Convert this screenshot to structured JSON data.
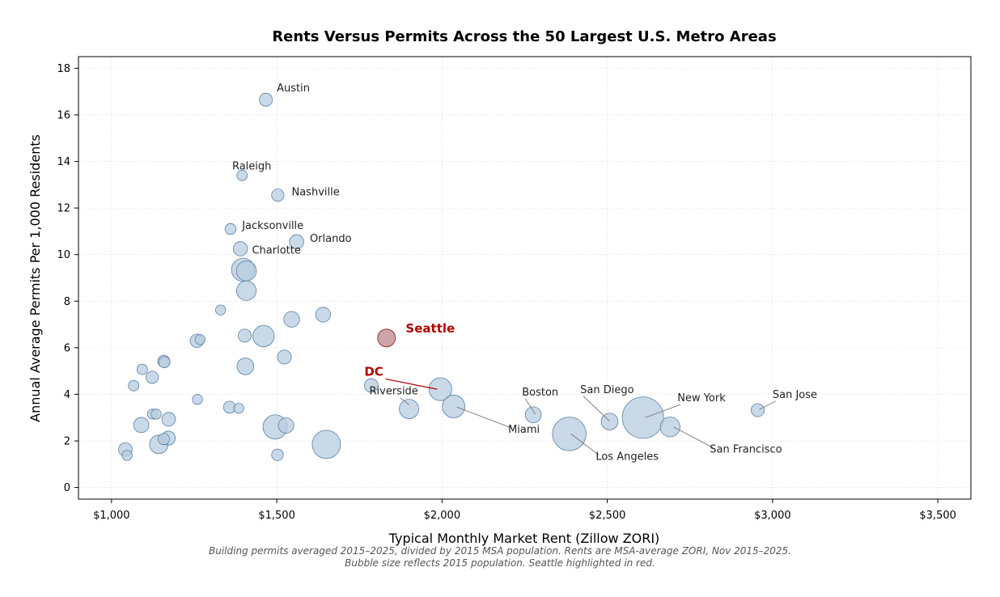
{
  "chart_data": {
    "type": "scatter",
    "title": "Rents Versus Permits Across the 50 Largest U.S. Metro Areas",
    "xlabel": "Typical Monthly Market Rent (Zillow ZORI)",
    "ylabel": "Annual Average Permits Per 1,000 Residents",
    "xlim": [
      900,
      3600
    ],
    "ylim": [
      -0.5,
      18.5
    ],
    "x_ticks": [
      1000,
      1500,
      2000,
      2500,
      3000,
      3500
    ],
    "x_tick_labels": [
      "$1,000",
      "$1,500",
      "$2,000",
      "$2,500",
      "$3,000",
      "$3,500"
    ],
    "y_ticks": [
      0,
      2,
      4,
      6,
      8,
      10,
      12,
      14,
      16,
      18
    ],
    "y_tick_labels": [
      "0",
      "2",
      "4",
      "6",
      "8",
      "10",
      "12",
      "14",
      "16",
      "18"
    ],
    "grid": true,
    "caption_lines": [
      "Building permits averaged 2015–2025, divided by 2015 MSA population. Rents are MSA-average ZORI, Nov 2015–2025.",
      "Bubble size reflects 2015 population. Seattle highlighted in red."
    ],
    "highlight_color": "#b30000",
    "points": [
      {
        "name": "Austin",
        "x": 1467,
        "y": 16.65,
        "pop": 2.0
      },
      {
        "name": "Raleigh",
        "x": 1395,
        "y": 13.4,
        "pop": 1.3
      },
      {
        "name": "Nashville",
        "x": 1503,
        "y": 12.55,
        "pop": 1.8
      },
      {
        "name": "Jacksonville",
        "x": 1360,
        "y": 11.1,
        "pop": 1.4
      },
      {
        "name": "Orlando",
        "x": 1560,
        "y": 10.55,
        "pop": 2.4
      },
      {
        "name": "Charlotte",
        "x": 1390,
        "y": 10.25,
        "pop": 2.4
      },
      {
        "name": "",
        "x": 1398,
        "y": 9.35,
        "pop": 6.3
      },
      {
        "name": "",
        "x": 1408,
        "y": 9.3,
        "pop": 4.7
      },
      {
        "name": "",
        "x": 1408,
        "y": 8.45,
        "pop": 4.5
      },
      {
        "name": "",
        "x": 1330,
        "y": 7.62,
        "pop": 1.2
      },
      {
        "name": "",
        "x": 1545,
        "y": 7.22,
        "pop": 2.9
      },
      {
        "name": "",
        "x": 1640,
        "y": 7.42,
        "pop": 2.6
      },
      {
        "name": "",
        "x": 1460,
        "y": 6.5,
        "pop": 5.4
      },
      {
        "name": "",
        "x": 1403,
        "y": 6.52,
        "pop": 2.0
      },
      {
        "name": "",
        "x": 1258,
        "y": 6.3,
        "pop": 2.1
      },
      {
        "name": "",
        "x": 1268,
        "y": 6.35,
        "pop": 1.2
      },
      {
        "name": "",
        "x": 1158,
        "y": 5.42,
        "pop": 1.7
      },
      {
        "name": "",
        "x": 1160,
        "y": 5.38,
        "pop": 1.5
      },
      {
        "name": "",
        "x": 1523,
        "y": 5.6,
        "pop": 2.3
      },
      {
        "name": "",
        "x": 1405,
        "y": 5.2,
        "pop": 3.3
      },
      {
        "name": "",
        "x": 1093,
        "y": 5.07,
        "pop": 1.3
      },
      {
        "name": "",
        "x": 1123,
        "y": 4.73,
        "pop": 1.8
      },
      {
        "name": "",
        "x": 1067,
        "y": 4.37,
        "pop": 1.3
      },
      {
        "name": "Seattle",
        "x": 1832,
        "y": 6.42,
        "pop": 3.7
      },
      {
        "name": "DC",
        "x": 1995,
        "y": 4.22,
        "pop": 6.1
      },
      {
        "name": "Riverside",
        "x": 1786,
        "y": 4.38,
        "pop": 2.2
      },
      {
        "name": "",
        "x": 1900,
        "y": 3.37,
        "pop": 4.4
      },
      {
        "name": "Miami",
        "x": 2035,
        "y": 3.48,
        "pop": 6.0
      },
      {
        "name": "Boston",
        "x": 2276,
        "y": 3.12,
        "pop": 3.0
      },
      {
        "name": "San Diego",
        "x": 2507,
        "y": 2.83,
        "pop": 3.3
      },
      {
        "name": "Los Angeles",
        "x": 2385,
        "y": 2.3,
        "pop": 13.3
      },
      {
        "name": "New York",
        "x": 2608,
        "y": 3.0,
        "pop": 20.2
      },
      {
        "name": "San Francisco",
        "x": 2690,
        "y": 2.6,
        "pop": 4.6
      },
      {
        "name": "San Jose",
        "x": 2955,
        "y": 3.32,
        "pop": 2.0
      },
      {
        "name": "",
        "x": 1260,
        "y": 3.78,
        "pop": 1.2
      },
      {
        "name": "",
        "x": 1357,
        "y": 3.45,
        "pop": 1.7
      },
      {
        "name": "",
        "x": 1385,
        "y": 3.4,
        "pop": 1.2
      },
      {
        "name": "",
        "x": 1124,
        "y": 3.15,
        "pop": 1.2
      },
      {
        "name": "",
        "x": 1135,
        "y": 3.15,
        "pop": 1.2
      },
      {
        "name": "",
        "x": 1173,
        "y": 2.93,
        "pop": 2.2
      },
      {
        "name": "",
        "x": 1090,
        "y": 2.68,
        "pop": 2.7
      },
      {
        "name": "",
        "x": 1172,
        "y": 2.12,
        "pop": 2.3
      },
      {
        "name": "",
        "x": 1158,
        "y": 2.08,
        "pop": 1.5
      },
      {
        "name": "",
        "x": 1143,
        "y": 1.85,
        "pop": 4.0
      },
      {
        "name": "",
        "x": 1042,
        "y": 1.63,
        "pop": 2.2
      },
      {
        "name": "",
        "x": 1047,
        "y": 1.38,
        "pop": 1.2
      },
      {
        "name": "",
        "x": 1495,
        "y": 2.6,
        "pop": 6.9
      },
      {
        "name": "",
        "x": 1528,
        "y": 2.66,
        "pop": 2.8
      },
      {
        "name": "",
        "x": 1502,
        "y": 1.4,
        "pop": 1.6
      },
      {
        "name": "",
        "x": 1650,
        "y": 1.85,
        "pop": 9.4
      }
    ],
    "annotations": [
      {
        "label": "Austin",
        "x": 1500,
        "y": 17.0,
        "highlight": false,
        "arrow": false
      },
      {
        "label": "Raleigh",
        "x": 1365,
        "y": 13.65,
        "highlight": false,
        "arrow": false
      },
      {
        "label": "Nashville",
        "x": 1545,
        "y": 12.55,
        "highlight": false,
        "arrow": false
      },
      {
        "label": "Jacksonville",
        "x": 1395,
        "y": 11.1,
        "highlight": false,
        "arrow": false
      },
      {
        "label": "Orlando",
        "x": 1600,
        "y": 10.55,
        "highlight": false,
        "arrow": false
      },
      {
        "label": "Charlotte",
        "x": 1425,
        "y": 10.05,
        "highlight": false,
        "arrow": false
      },
      {
        "label": "Seattle",
        "x": 1890,
        "y": 6.65,
        "highlight": true,
        "arrow": false
      },
      {
        "label": "DC",
        "x": 1765,
        "y": 4.8,
        "highlight": true,
        "arrow": true,
        "to_x": 1985,
        "to_y": 4.22
      },
      {
        "label": "Riverside",
        "x": 1780,
        "y": 4.0,
        "highlight": false,
        "arrow": true,
        "to_x": 1900,
        "to_y": 3.55
      },
      {
        "label": "Miami",
        "x": 2200,
        "y": 2.35,
        "highlight": false,
        "arrow": true,
        "to_x": 2045,
        "to_y": 3.45
      },
      {
        "label": "Boston",
        "x": 2242,
        "y": 3.95,
        "highlight": false,
        "arrow": true,
        "to_x": 2282,
        "to_y": 3.15
      },
      {
        "label": "San Diego",
        "x": 2418,
        "y": 4.05,
        "highlight": false,
        "arrow": true,
        "to_x": 2507,
        "to_y": 2.85
      },
      {
        "label": "Los Angeles",
        "x": 2465,
        "y": 1.18,
        "highlight": false,
        "arrow": true,
        "to_x": 2390,
        "to_y": 2.3
      },
      {
        "label": "New York",
        "x": 2712,
        "y": 3.7,
        "highlight": false,
        "arrow": true,
        "to_x": 2615,
        "to_y": 3.0
      },
      {
        "label": "San Francisco",
        "x": 2810,
        "y": 1.5,
        "highlight": false,
        "arrow": true,
        "to_x": 2700,
        "to_y": 2.6
      },
      {
        "label": "San Jose",
        "x": 3000,
        "y": 3.85,
        "highlight": false,
        "arrow": true,
        "to_x": 2960,
        "to_y": 3.35
      }
    ]
  }
}
